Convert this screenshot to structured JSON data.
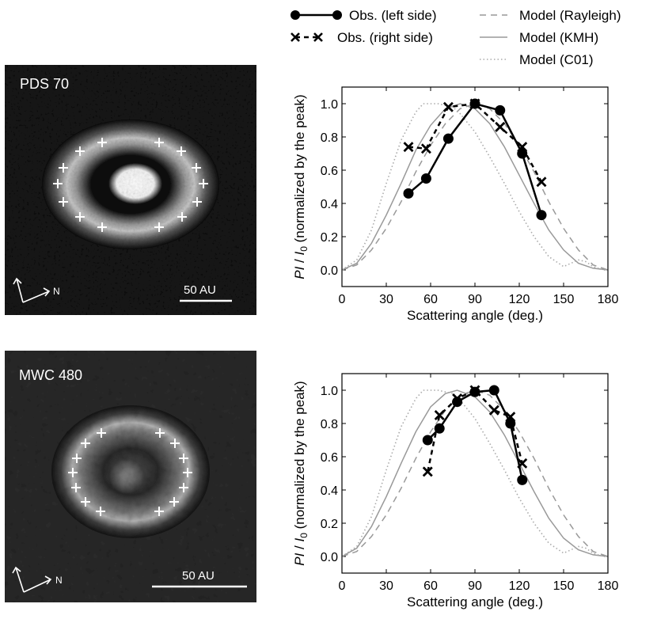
{
  "legend": {
    "obs_left": "Obs. (left side)",
    "obs_right": "Obs. (right side)",
    "model_rayleigh": "Model (Rayleigh)",
    "model_kmh": "Model (KMH)",
    "model_c01": "Model (C01)"
  },
  "images": [
    {
      "label": "PDS 70",
      "scale_label": "50 AU",
      "compass_label": "N",
      "center_blob": "bright"
    },
    {
      "label": "MWC 480",
      "scale_label": "50 AU",
      "compass_label": "N",
      "center_blob": "faint"
    }
  ],
  "chart_data": [
    {
      "type": "line",
      "xlabel": "Scattering angle (deg.)",
      "ylabel": "PI / I0 (normalized by the peak)",
      "ylabel_main": "PI",
      "ylabel_slash": " / ",
      "ylabel_i": "I",
      "ylabel_sub": "0",
      "ylabel_rest": " (normalized by the peak)",
      "xlim": [
        0,
        180
      ],
      "ylim": [
        -0.1,
        1.1
      ],
      "xticks": [
        0,
        30,
        60,
        90,
        120,
        150,
        180
      ],
      "xtick_labels": [
        "0",
        "30",
        "60",
        "90",
        "120",
        "150",
        "180"
      ],
      "yticks": [
        0.0,
        0.2,
        0.4,
        0.6,
        0.8,
        1.0
      ],
      "ytick_labels": [
        "0.0",
        "0.2",
        "0.4",
        "0.6",
        "0.8",
        "1.0"
      ],
      "series": [
        {
          "name": "Obs. (left side)",
          "style": "solid-circle",
          "color": "#000000",
          "x": [
            45,
            57,
            72,
            90,
            107,
            122,
            135
          ],
          "y": [
            0.46,
            0.55,
            0.79,
            1.0,
            0.96,
            0.7,
            0.33
          ]
        },
        {
          "name": "Obs. (right side)",
          "style": "dashed-x",
          "color": "#000000",
          "x": [
            45,
            57,
            72,
            90,
            107,
            122,
            135
          ],
          "y": [
            0.74,
            0.73,
            0.98,
            1.0,
            0.86,
            0.74,
            0.53
          ]
        },
        {
          "name": "Model (Rayleigh)",
          "style": "dashed-model",
          "color": "#999999",
          "peak_angle": 90,
          "x": [
            0,
            10,
            20,
            30,
            40,
            50,
            60,
            70,
            80,
            90,
            100,
            110,
            120,
            130,
            140,
            150,
            160,
            170,
            180
          ],
          "y": [
            0.0,
            0.03,
            0.12,
            0.25,
            0.41,
            0.59,
            0.75,
            0.88,
            0.97,
            1.0,
            0.97,
            0.88,
            0.75,
            0.59,
            0.41,
            0.25,
            0.12,
            0.03,
            0.0
          ]
        },
        {
          "name": "Model (KMH)",
          "style": "solid-model",
          "color": "#999999",
          "peak_angle": 80,
          "x": [
            0,
            10,
            20,
            30,
            40,
            50,
            60,
            70,
            80,
            90,
            100,
            110,
            120,
            130,
            140,
            150,
            160,
            170,
            180
          ],
          "y": [
            0.0,
            0.04,
            0.16,
            0.33,
            0.52,
            0.72,
            0.87,
            0.97,
            1.0,
            0.97,
            0.88,
            0.74,
            0.57,
            0.4,
            0.24,
            0.12,
            0.04,
            0.01,
            0.0
          ]
        },
        {
          "name": "Model (C01)",
          "style": "dotted-model",
          "color": "#aaaaaa",
          "peak_angle": 65,
          "x": [
            0,
            10,
            20,
            30,
            40,
            50,
            55,
            65,
            75,
            80,
            90,
            100,
            110,
            120,
            130,
            140,
            150,
            155,
            160,
            165,
            170,
            175,
            180
          ],
          "y": [
            0.0,
            0.06,
            0.24,
            0.52,
            0.78,
            0.95,
            1.0,
            1.0,
            0.98,
            0.94,
            0.83,
            0.68,
            0.52,
            0.35,
            0.2,
            0.08,
            0.02,
            0.04,
            0.06,
            0.05,
            0.02,
            0.005,
            0.0
          ]
        }
      ]
    },
    {
      "type": "line",
      "xlabel": "Scattering angle (deg.)",
      "ylabel": "PI / I0 (normalized by the peak)",
      "ylabel_main": "PI",
      "ylabel_slash": " / ",
      "ylabel_i": "I",
      "ylabel_sub": "0",
      "ylabel_rest": " (normalized by the peak)",
      "xlim": [
        0,
        180
      ],
      "ylim": [
        -0.1,
        1.1
      ],
      "xticks": [
        0,
        30,
        60,
        90,
        120,
        150,
        180
      ],
      "xtick_labels": [
        "0",
        "30",
        "60",
        "90",
        "120",
        "150",
        "180"
      ],
      "yticks": [
        0.0,
        0.2,
        0.4,
        0.6,
        0.8,
        1.0
      ],
      "ytick_labels": [
        "0.0",
        "0.2",
        "0.4",
        "0.6",
        "0.8",
        "1.0"
      ],
      "series": [
        {
          "name": "Obs. (left side)",
          "style": "solid-circle",
          "color": "#000000",
          "x": [
            58,
            66,
            78,
            90,
            103,
            114,
            122
          ],
          "y": [
            0.7,
            0.77,
            0.93,
            0.99,
            1.0,
            0.8,
            0.46
          ]
        },
        {
          "name": "Obs. (right side)",
          "style": "dashed-x",
          "color": "#000000",
          "x": [
            58,
            66,
            78,
            90,
            103,
            114,
            122
          ],
          "y": [
            0.51,
            0.85,
            0.95,
            1.0,
            0.88,
            0.84,
            0.56
          ]
        },
        {
          "name": "Model (Rayleigh)",
          "style": "dashed-model",
          "color": "#999999",
          "peak_angle": 90,
          "x": [
            0,
            10,
            20,
            30,
            40,
            50,
            60,
            70,
            80,
            90,
            100,
            110,
            120,
            130,
            140,
            150,
            160,
            170,
            180
          ],
          "y": [
            0.0,
            0.03,
            0.12,
            0.25,
            0.41,
            0.59,
            0.75,
            0.88,
            0.97,
            1.0,
            0.97,
            0.88,
            0.75,
            0.59,
            0.41,
            0.25,
            0.12,
            0.03,
            0.0
          ]
        },
        {
          "name": "Model (KMH)",
          "style": "solid-model",
          "color": "#999999",
          "peak_angle": 78,
          "x": [
            0,
            10,
            20,
            30,
            40,
            50,
            60,
            70,
            78,
            90,
            100,
            110,
            120,
            130,
            140,
            150,
            160,
            170,
            180
          ],
          "y": [
            0.0,
            0.05,
            0.18,
            0.36,
            0.56,
            0.75,
            0.9,
            0.98,
            1.0,
            0.96,
            0.87,
            0.73,
            0.56,
            0.39,
            0.23,
            0.11,
            0.04,
            0.01,
            0.0
          ]
        },
        {
          "name": "Model (C01)",
          "style": "dotted-model",
          "color": "#aaaaaa",
          "peak_angle": 65,
          "x": [
            0,
            10,
            20,
            30,
            40,
            50,
            55,
            65,
            75,
            80,
            90,
            100,
            110,
            120,
            130,
            140,
            150,
            155,
            160,
            165,
            170,
            175,
            180
          ],
          "y": [
            0.0,
            0.06,
            0.24,
            0.52,
            0.78,
            0.95,
            1.0,
            1.0,
            0.98,
            0.94,
            0.83,
            0.68,
            0.52,
            0.35,
            0.2,
            0.08,
            0.02,
            0.04,
            0.06,
            0.05,
            0.02,
            0.005,
            0.0
          ]
        }
      ]
    }
  ]
}
